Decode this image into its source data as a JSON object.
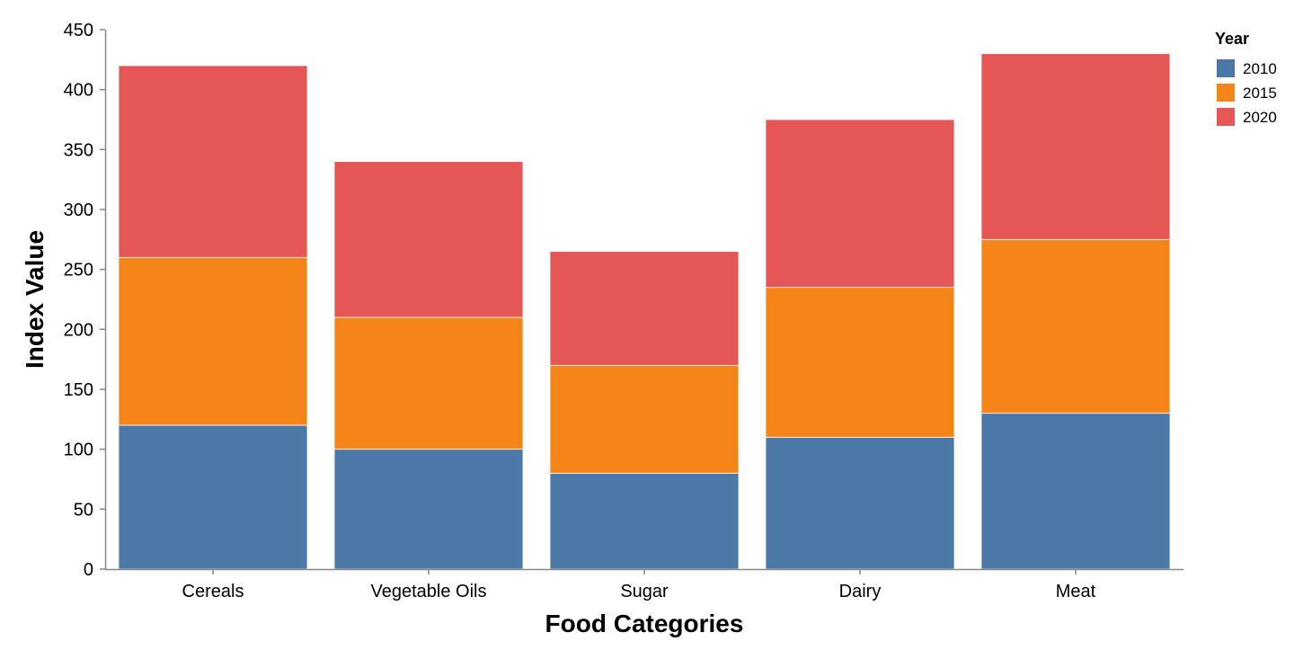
{
  "chart_data": {
    "type": "bar",
    "stacked": true,
    "categories": [
      "Cereals",
      "Vegetable Oils",
      "Sugar",
      "Dairy",
      "Meat"
    ],
    "series": [
      {
        "name": "2010",
        "values": [
          120,
          100,
          80,
          110,
          130
        ],
        "color": "#4c78a8"
      },
      {
        "name": "2015",
        "values": [
          140,
          110,
          90,
          125,
          145
        ],
        "color": "#f58518"
      },
      {
        "name": "2020",
        "values": [
          160,
          130,
          95,
          140,
          155
        ],
        "color": "#e45756"
      }
    ],
    "xlabel": "Food Categories",
    "ylabel": "Index Value",
    "ylim": [
      0,
      450
    ],
    "yticks": [
      0,
      50,
      100,
      150,
      200,
      250,
      300,
      350,
      400,
      450
    ],
    "grid": false,
    "legend": {
      "title": "Year",
      "placement": "top-right"
    }
  }
}
